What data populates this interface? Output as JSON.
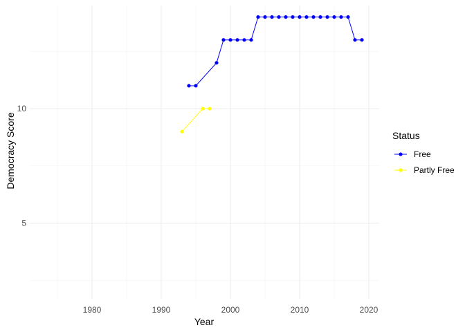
{
  "chart_data": {
    "type": "line",
    "xlabel": "Year",
    "ylabel": "Democracy Score",
    "xlim": [
      1971,
      2021.5
    ],
    "ylim": [
      1.7,
      14.5
    ],
    "x_ticks": [
      1980,
      1990,
      2000,
      2010,
      2020
    ],
    "y_ticks": [
      5,
      10
    ],
    "grid": true,
    "legend": {
      "title": "Status",
      "position": "right"
    },
    "series": [
      {
        "name": "Free",
        "color": "#0000ff",
        "points": [
          {
            "x": 1994,
            "y": 11
          },
          {
            "x": 1995,
            "y": 11
          },
          {
            "x": 1998,
            "y": 12
          },
          {
            "x": 1999,
            "y": 13
          },
          {
            "x": 2000,
            "y": 13
          },
          {
            "x": 2001,
            "y": 13
          },
          {
            "x": 2002,
            "y": 13
          },
          {
            "x": 2003,
            "y": 13
          },
          {
            "x": 2004,
            "y": 14
          },
          {
            "x": 2005,
            "y": 14
          },
          {
            "x": 2006,
            "y": 14
          },
          {
            "x": 2007,
            "y": 14
          },
          {
            "x": 2008,
            "y": 14
          },
          {
            "x": 2009,
            "y": 14
          },
          {
            "x": 2010,
            "y": 14
          },
          {
            "x": 2011,
            "y": 14
          },
          {
            "x": 2012,
            "y": 14
          },
          {
            "x": 2013,
            "y": 14
          },
          {
            "x": 2014,
            "y": 14
          },
          {
            "x": 2015,
            "y": 14
          },
          {
            "x": 2016,
            "y": 14
          },
          {
            "x": 2017,
            "y": 14
          },
          {
            "x": 2018,
            "y": 13
          },
          {
            "x": 2019,
            "y": 13
          }
        ]
      },
      {
        "name": "Partly Free",
        "color": "#ffff00",
        "points": [
          {
            "x": 1993,
            "y": 9
          },
          {
            "x": 1996,
            "y": 10
          },
          {
            "x": 1997,
            "y": 10
          }
        ]
      }
    ]
  }
}
